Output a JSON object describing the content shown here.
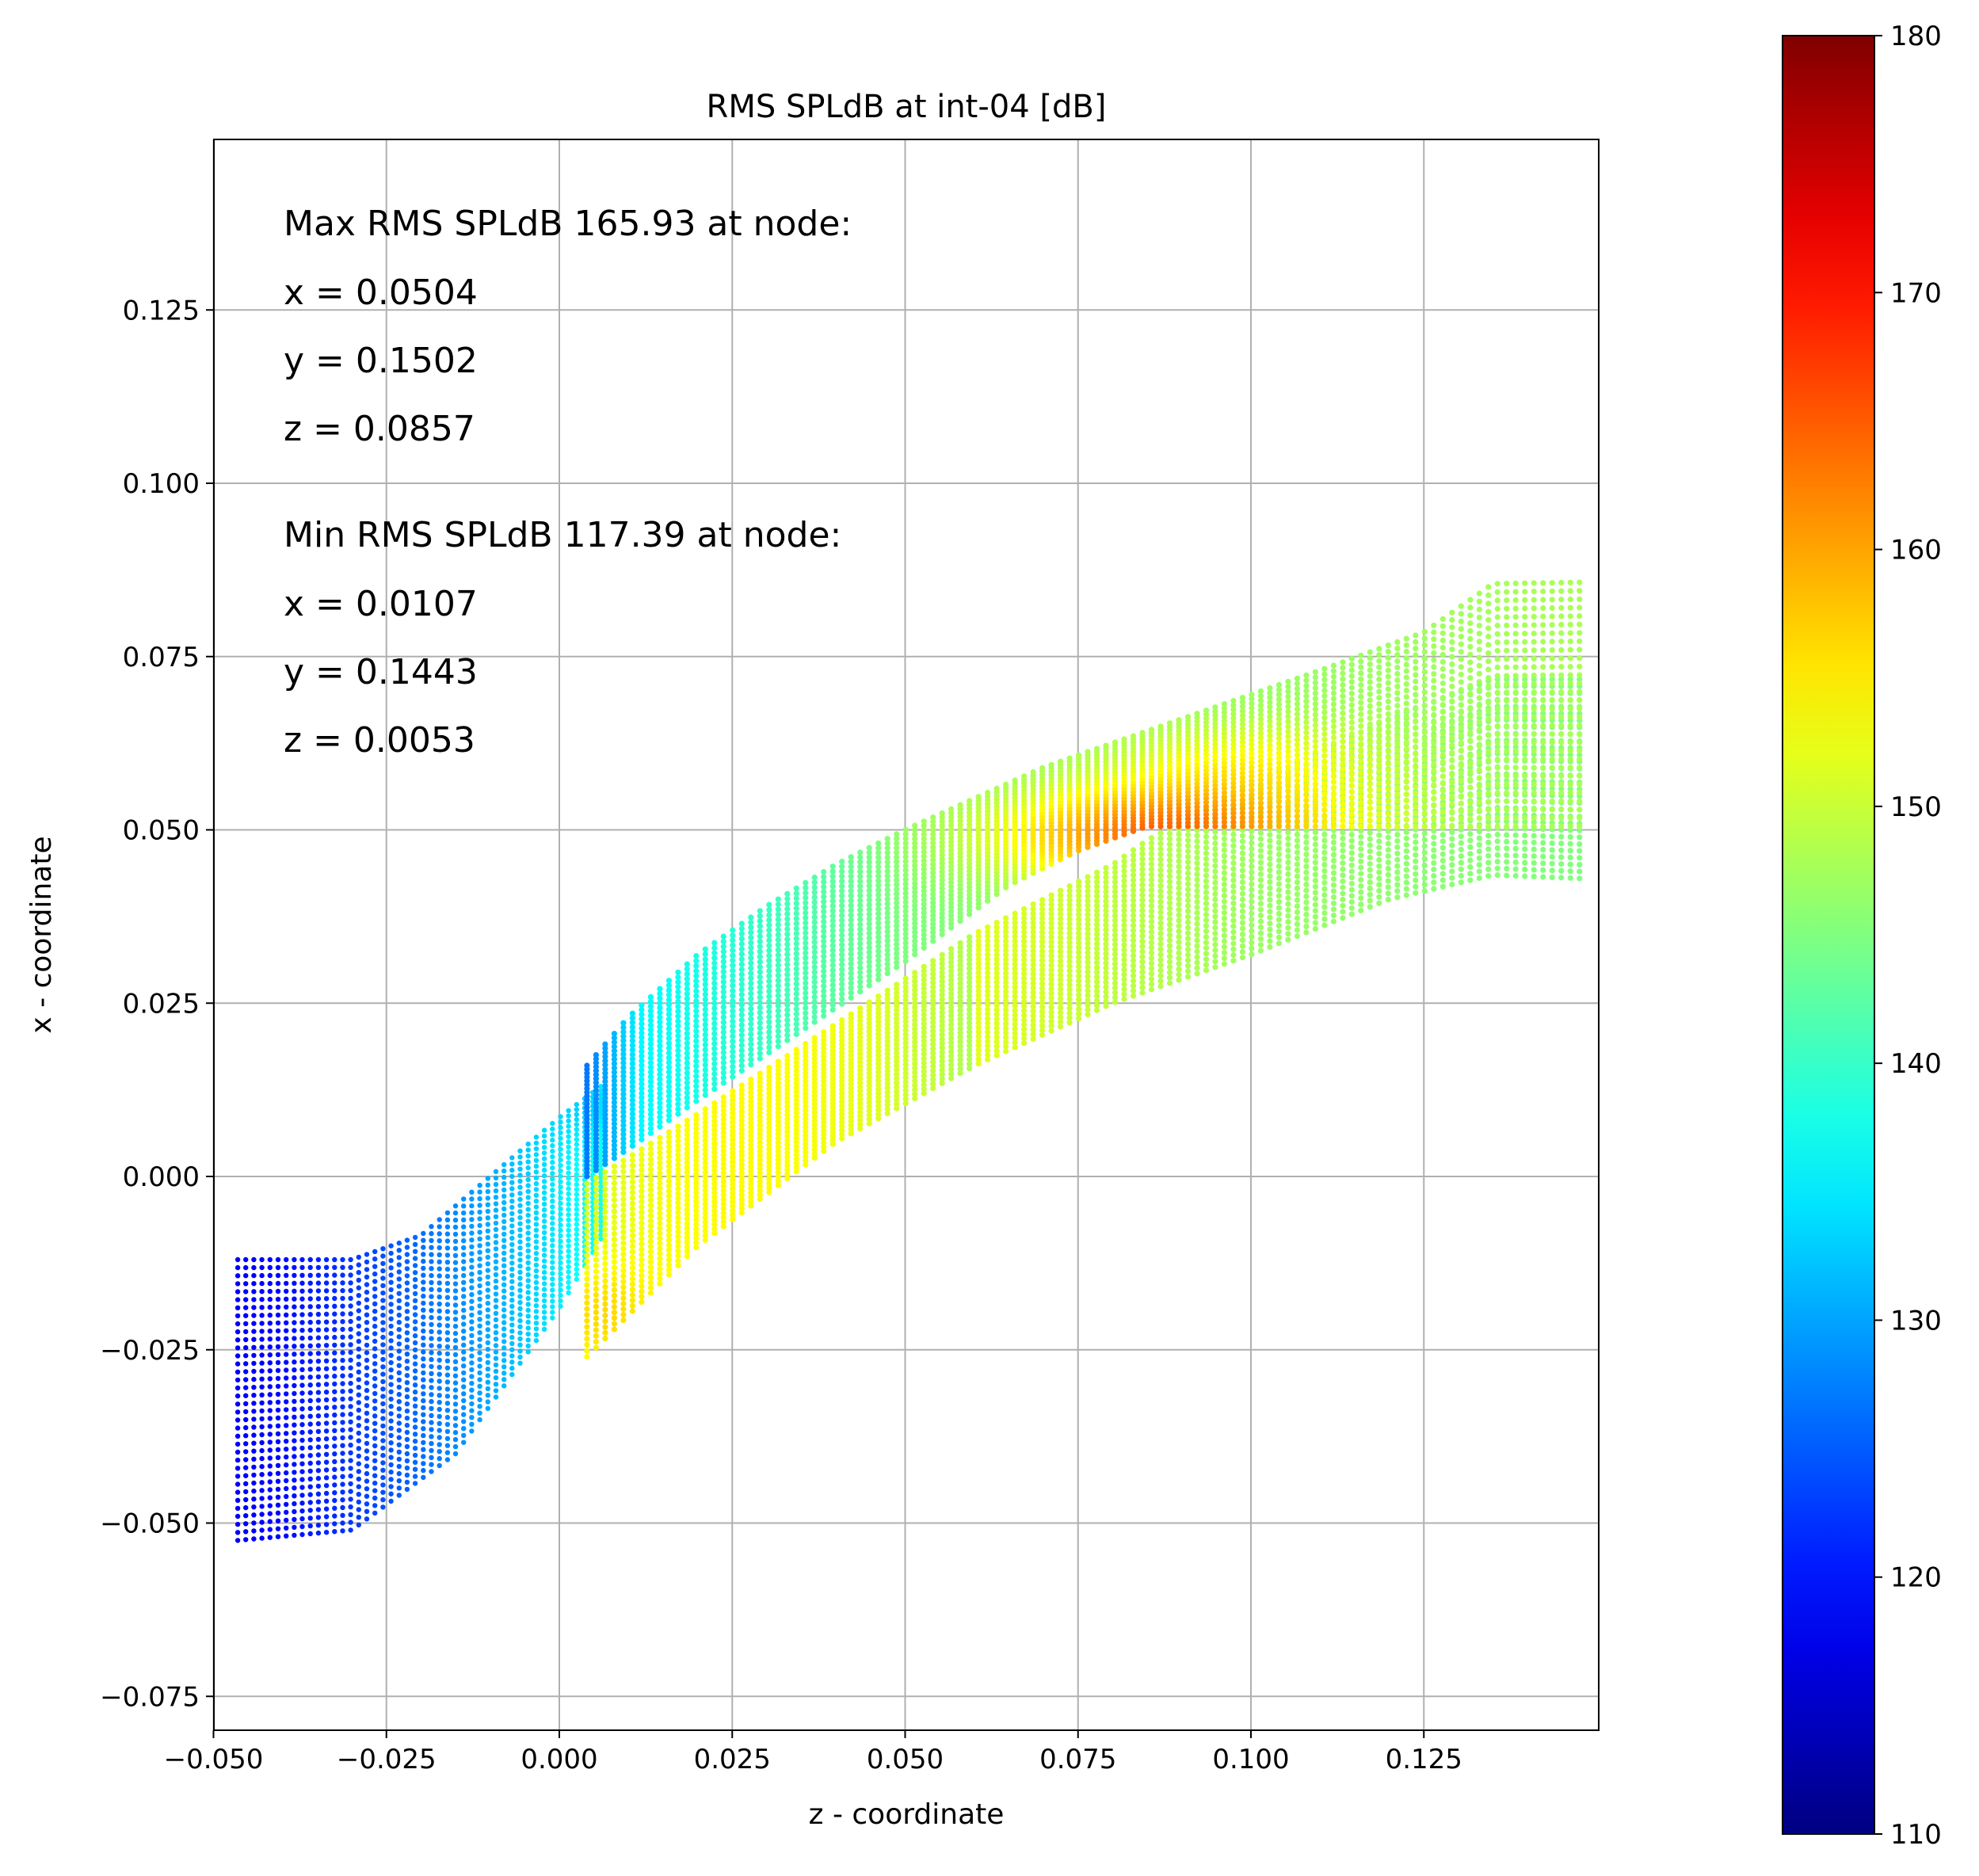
{
  "chart_data": {
    "type": "scatter",
    "title": "RMS SPLdB at int-04 [dB]",
    "xlabel": "z - coordinate",
    "ylabel": "x - coordinate",
    "xlim": [
      -0.05,
      0.15
    ],
    "ylim": [
      -0.08,
      0.15
    ],
    "xticks": [
      -0.05,
      -0.025,
      0.0,
      0.025,
      0.05,
      0.075,
      0.1,
      0.125
    ],
    "xtick_labels": [
      "−0.050",
      "−0.025",
      "0.000",
      "0.025",
      "0.050",
      "0.075",
      "0.100",
      "0.125"
    ],
    "yticks": [
      -0.075,
      -0.05,
      -0.025,
      0.0,
      0.025,
      0.05,
      0.075,
      0.1,
      0.125
    ],
    "ytick_labels": [
      "−0.075",
      "−0.050",
      "−0.025",
      "0.000",
      "0.025",
      "0.050",
      "0.075",
      "0.100",
      "0.125"
    ],
    "grid": true,
    "colormap": "jet",
    "colorbar": {
      "min": 110,
      "max": 180,
      "ticks": [
        110,
        120,
        130,
        140,
        150,
        160,
        170,
        180
      ],
      "tick_labels": [
        "110",
        "120",
        "130",
        "140",
        "150",
        "160",
        "170",
        "180"
      ]
    },
    "annotations": [
      "Max RMS SPLdB 165.93 at node:",
      "x = 0.0504",
      "y = 0.1502",
      "z = 0.0857",
      "Min RMS SPLdB 117.39 at node:",
      "x = 0.0107",
      "y = 0.1443",
      "z = 0.0053"
    ],
    "max_node": {
      "value": 165.93,
      "x": 0.0504,
      "y": 0.1502,
      "z": 0.0857
    },
    "min_node": {
      "value": 117.39,
      "x": 0.0107,
      "y": 0.1443,
      "z": 0.0053
    },
    "regions": {
      "inlet": {
        "z_range": [
          -0.0465,
          0.006
        ],
        "lower_boundary": [
          [
            -0.0465,
            -0.0525
          ],
          [
            -0.03,
            -0.051
          ],
          [
            -0.015,
            -0.04
          ],
          [
            0.0,
            -0.019
          ],
          [
            0.006,
            -0.009
          ]
        ],
        "upper_boundary": [
          [
            -0.0465,
            -0.012
          ],
          [
            -0.03,
            -0.012
          ],
          [
            -0.02,
            -0.0085
          ],
          [
            -0.01,
            0.0
          ],
          [
            0.0,
            0.0085
          ],
          [
            0.006,
            0.013
          ]
        ],
        "value_range": [
          117,
          138
        ]
      },
      "upper_channel": {
        "z_range": [
          0.004,
          0.1475
        ],
        "lower_boundary": [
          [
            0.004,
            0.0
          ],
          [
            0.01,
            0.004
          ],
          [
            0.02,
            0.011
          ],
          [
            0.035,
            0.021
          ],
          [
            0.05,
            0.031
          ],
          [
            0.065,
            0.042
          ],
          [
            0.075,
            0.047
          ],
          [
            0.085,
            0.0505
          ]
        ],
        "upper_boundary": [
          [
            0.004,
            0.016
          ],
          [
            0.01,
            0.023
          ],
          [
            0.02,
            0.032
          ],
          [
            0.03,
            0.039
          ],
          [
            0.04,
            0.045
          ],
          [
            0.05,
            0.05
          ],
          [
            0.07,
            0.059
          ],
          [
            0.09,
            0.066
          ],
          [
            0.11,
            0.073
          ],
          [
            0.125,
            0.0785
          ],
          [
            0.135,
            0.0855
          ],
          [
            0.1475,
            0.0857
          ]
        ],
        "value_range": [
          127,
          165.93
        ]
      },
      "lower_channel": {
        "z_range": [
          0.004,
          0.1475
        ],
        "lower_boundary": [
          [
            0.004,
            -0.026
          ],
          [
            0.02,
            -0.01
          ],
          [
            0.04,
            0.005
          ],
          [
            0.06,
            0.016
          ],
          [
            0.08,
            0.025
          ],
          [
            0.1,
            0.032
          ],
          [
            0.12,
            0.04
          ],
          [
            0.135,
            0.0435
          ],
          [
            0.1475,
            0.043
          ]
        ],
        "upper_boundary": [
          [
            0.004,
            -0.001
          ],
          [
            0.02,
            0.009
          ],
          [
            0.04,
            0.022
          ],
          [
            0.06,
            0.035
          ],
          [
            0.08,
            0.045
          ],
          [
            0.085,
            0.0485
          ],
          [
            0.1,
            0.0565
          ],
          [
            0.12,
            0.066
          ],
          [
            0.135,
            0.0717
          ],
          [
            0.1475,
            0.0717
          ]
        ],
        "value_range": [
          140,
          156
        ]
      }
    }
  }
}
